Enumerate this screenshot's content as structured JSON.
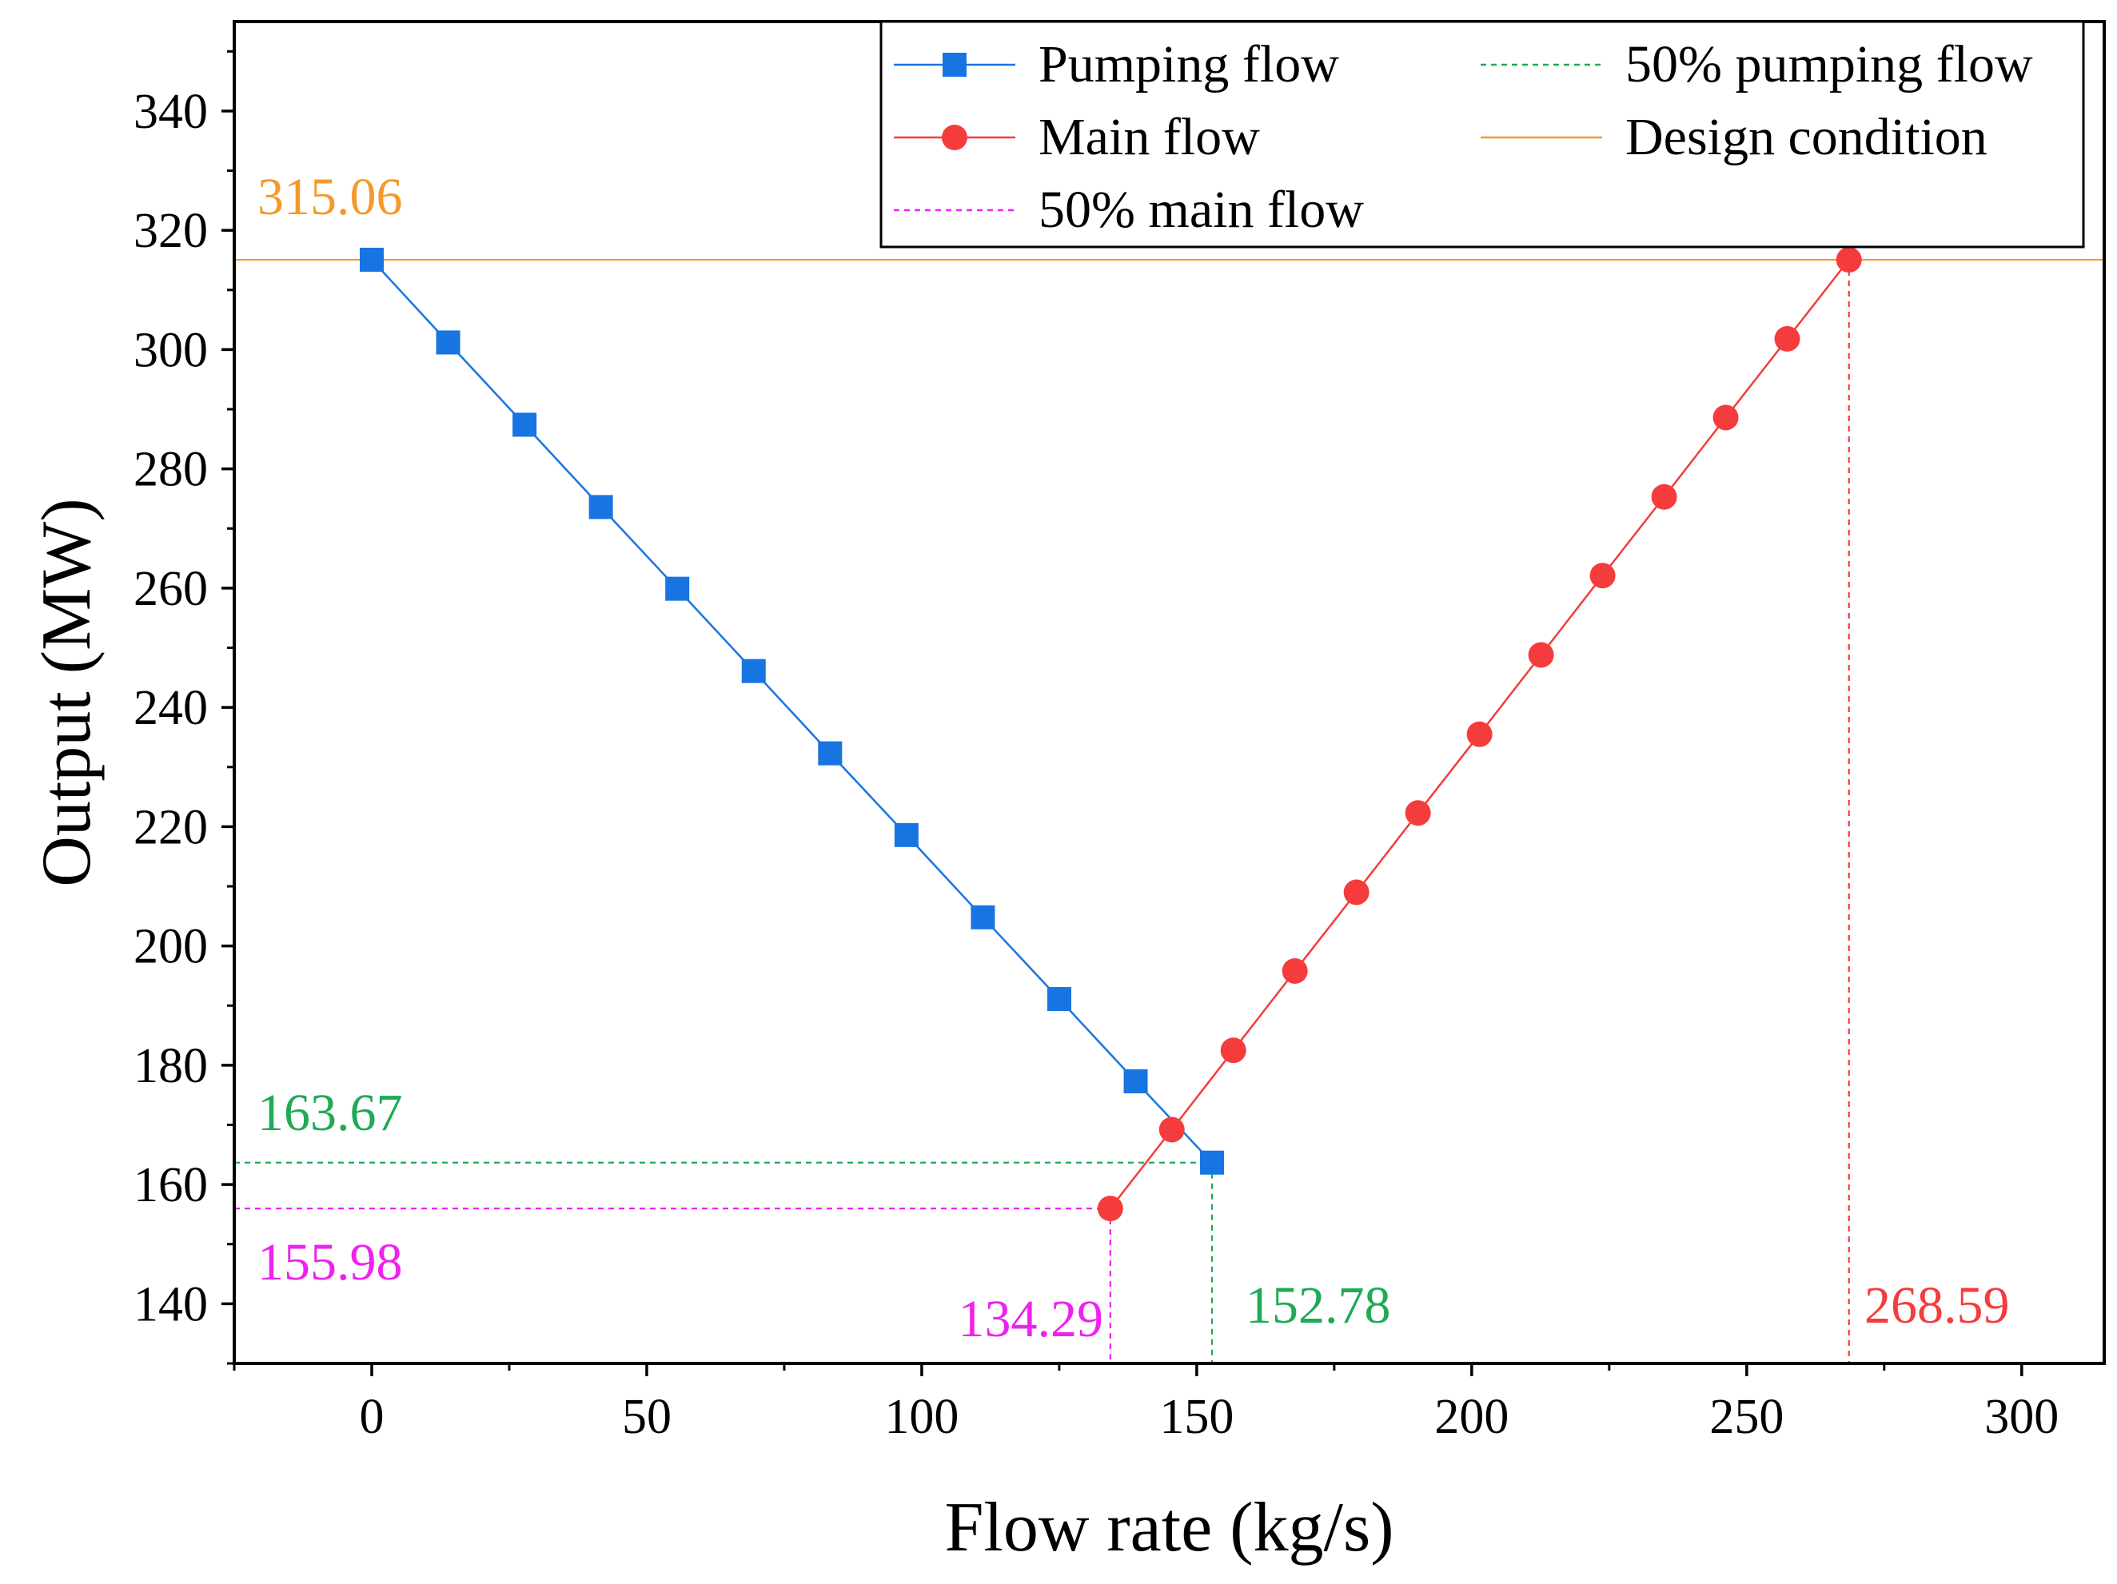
{
  "chart_data": {
    "type": "line",
    "xlabel": "Flow rate (kg/s)",
    "ylabel": "Output (MW)",
    "xlim": [
      -25,
      315
    ],
    "ylim": [
      130,
      355
    ],
    "xticks": [
      0,
      50,
      100,
      150,
      200,
      250,
      300
    ],
    "yticks": [
      140,
      160,
      180,
      200,
      220,
      240,
      260,
      280,
      300,
      320,
      340
    ],
    "series": [
      {
        "name": "Pumping flow",
        "color": "#1874e0",
        "marker": "square",
        "x": [
          0,
          13.89,
          27.78,
          41.67,
          55.56,
          69.45,
          83.34,
          97.23,
          111.12,
          125.01,
          138.9,
          152.78
        ],
        "y": [
          315.06,
          301.2,
          287.4,
          273.6,
          259.9,
          246.1,
          232.3,
          218.6,
          204.8,
          191.1,
          177.3,
          163.67
        ]
      },
      {
        "name": "Main flow",
        "color": "#f53c3c",
        "marker": "circle",
        "x": [
          134.29,
          145.47,
          156.66,
          167.85,
          179.04,
          190.23,
          201.42,
          212.61,
          223.8,
          234.99,
          246.18,
          257.37,
          268.59
        ],
        "y": [
          155.98,
          169.2,
          182.5,
          195.8,
          209.0,
          222.3,
          235.5,
          248.8,
          262.1,
          275.3,
          288.6,
          301.8,
          315.06
        ]
      }
    ],
    "reference_lines": [
      {
        "name": "50% pumping flow",
        "color": "#1faa55",
        "style": "dashed",
        "x": 152.78,
        "y": 163.67
      },
      {
        "name": "Design condition",
        "color": "#f39a2a",
        "style": "solid",
        "y": 315.06
      },
      {
        "name": "50% main flow",
        "color": "#ee22ee",
        "style": "dashed",
        "x": 134.29,
        "y": 155.98
      },
      {
        "name": "main-flow-design-drop",
        "color": "#f53c3c",
        "style": "dashed",
        "x": 268.59,
        "y": 315.06
      }
    ],
    "annotations": [
      {
        "text": "315.06",
        "color": "#f39a2a"
      },
      {
        "text": "163.67",
        "color": "#1faa55"
      },
      {
        "text": "155.98",
        "color": "#ee22ee"
      },
      {
        "text": "134.29",
        "color": "#ee22ee"
      },
      {
        "text": "152.78",
        "color": "#1faa55"
      },
      {
        "text": "268.59",
        "color": "#f53c3c"
      }
    ],
    "legend": {
      "placement": "top-right",
      "entries": [
        "Pumping flow",
        "50% pumping flow",
        "Main flow",
        "Design condition",
        "50% main flow"
      ]
    }
  }
}
